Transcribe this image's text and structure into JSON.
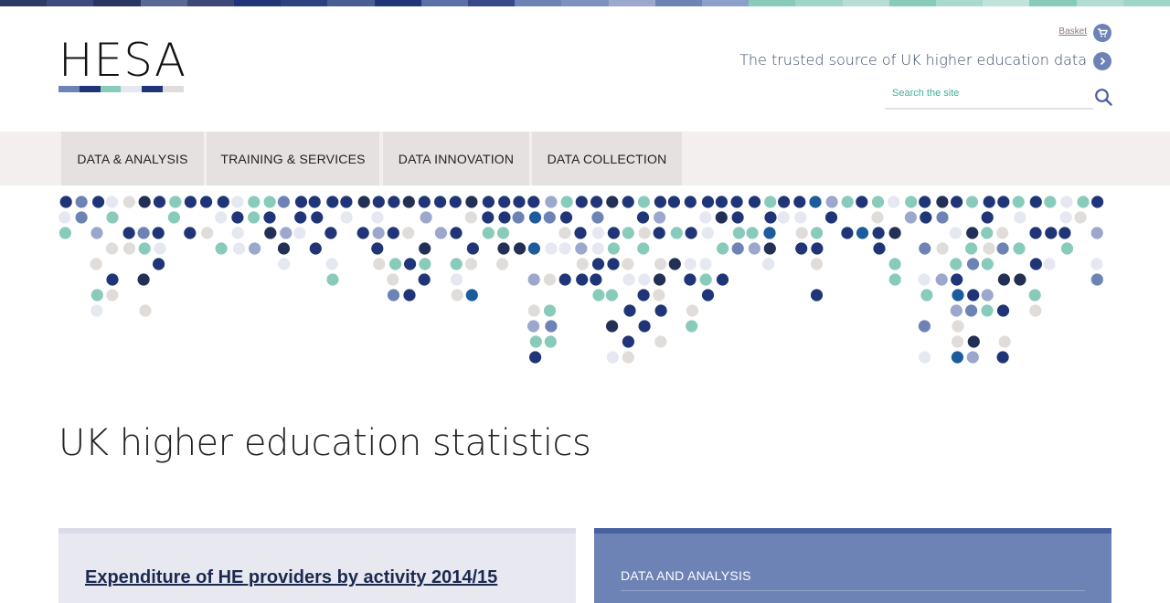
{
  "colors": {
    "navy": "#1f3577",
    "slate": "#6d83b6",
    "teal": "#88cbbb",
    "light": "#e5e7f1",
    "grey": "#e0dcda",
    "mid": "#9ba7cc",
    "dark": "#233056",
    "blue": "#1c5b9c"
  },
  "header": {
    "logo_text": "HESA",
    "basket_label": "Basket",
    "tagline": "The trusted source of UK higher education data",
    "search_placeholder": "Search the site"
  },
  "nav": {
    "items": [
      {
        "label": "DATA & ANALYSIS"
      },
      {
        "label": "TRAINING & SERVICES"
      },
      {
        "label": "DATA INNOVATION"
      },
      {
        "label": "DATA COLLECTION"
      }
    ]
  },
  "main": {
    "title": "UK higher education statistics",
    "feature_link": "Expenditure of HE providers by activity 2014/15",
    "panel_heading": "DATA AND ANALYSIS"
  }
}
